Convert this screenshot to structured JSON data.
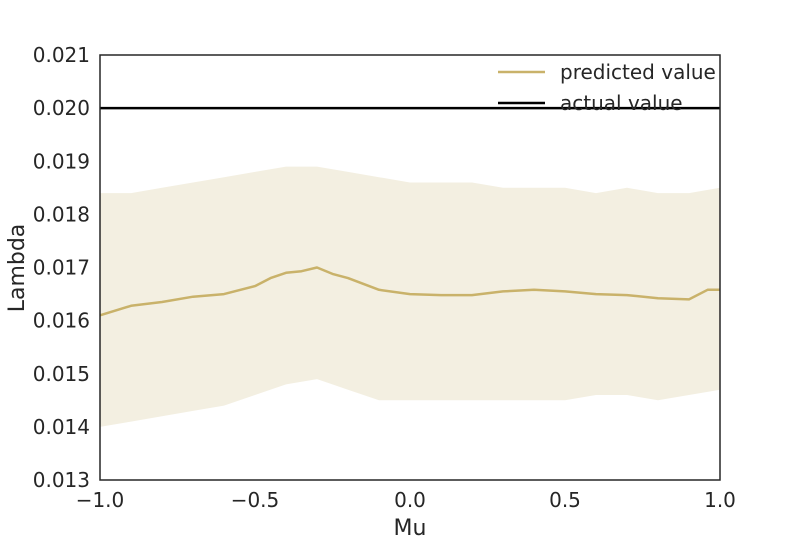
{
  "chart_data": {
    "type": "line",
    "title": "",
    "xlabel": "Mu",
    "ylabel": "Lambda",
    "xlim": [
      -1.0,
      1.0
    ],
    "ylim": [
      0.013,
      0.021
    ],
    "xticks": [
      -1.0,
      -0.5,
      0.0,
      0.5,
      1.0
    ],
    "xtick_labels": [
      "−1.0",
      "−0.5",
      "0.0",
      "0.5",
      "1.0"
    ],
    "yticks": [
      0.013,
      0.014,
      0.015,
      0.016,
      0.017,
      0.018,
      0.019,
      0.02,
      0.021
    ],
    "ytick_labels": [
      "0.013",
      "0.014",
      "0.015",
      "0.016",
      "0.017",
      "0.018",
      "0.019",
      "0.020",
      "0.021"
    ],
    "grid": false,
    "legend_position": "top-right",
    "colors": {
      "predicted": "#c9b26a",
      "band": "#f3efe1",
      "actual": "#000000"
    },
    "series": [
      {
        "name": "predicted value",
        "kind": "line",
        "x": [
          -1.0,
          -0.9,
          -0.8,
          -0.7,
          -0.6,
          -0.5,
          -0.45,
          -0.4,
          -0.35,
          -0.3,
          -0.25,
          -0.2,
          -0.1,
          0.0,
          0.1,
          0.2,
          0.3,
          0.4,
          0.5,
          0.6,
          0.7,
          0.8,
          0.9,
          0.96,
          1.0
        ],
        "y": [
          0.0161,
          0.01628,
          0.01635,
          0.01645,
          0.0165,
          0.01665,
          0.0168,
          0.0169,
          0.01693,
          0.017,
          0.01688,
          0.0168,
          0.01658,
          0.0165,
          0.01648,
          0.01648,
          0.01655,
          0.01658,
          0.01655,
          0.0165,
          0.01648,
          0.01642,
          0.0164,
          0.01658,
          0.01658
        ]
      },
      {
        "name": "actual value",
        "kind": "hline",
        "y": 0.02
      },
      {
        "name": "",
        "kind": "band",
        "x": [
          -1.0,
          -0.9,
          -0.8,
          -0.7,
          -0.6,
          -0.5,
          -0.4,
          -0.3,
          -0.2,
          -0.1,
          0.0,
          0.1,
          0.2,
          0.3,
          0.4,
          0.5,
          0.6,
          0.7,
          0.8,
          0.9,
          1.0
        ],
        "upper": [
          0.0184,
          0.0184,
          0.0185,
          0.0186,
          0.0187,
          0.0188,
          0.0189,
          0.0189,
          0.0188,
          0.0187,
          0.0186,
          0.0186,
          0.0186,
          0.0185,
          0.0185,
          0.0185,
          0.0184,
          0.0185,
          0.0184,
          0.0184,
          0.0185
        ],
        "lower": [
          0.014,
          0.0141,
          0.0142,
          0.0143,
          0.0144,
          0.0146,
          0.0148,
          0.0149,
          0.0147,
          0.0145,
          0.0145,
          0.0145,
          0.0145,
          0.0145,
          0.0145,
          0.0145,
          0.0146,
          0.0146,
          0.0145,
          0.0146,
          0.0147
        ]
      }
    ]
  }
}
